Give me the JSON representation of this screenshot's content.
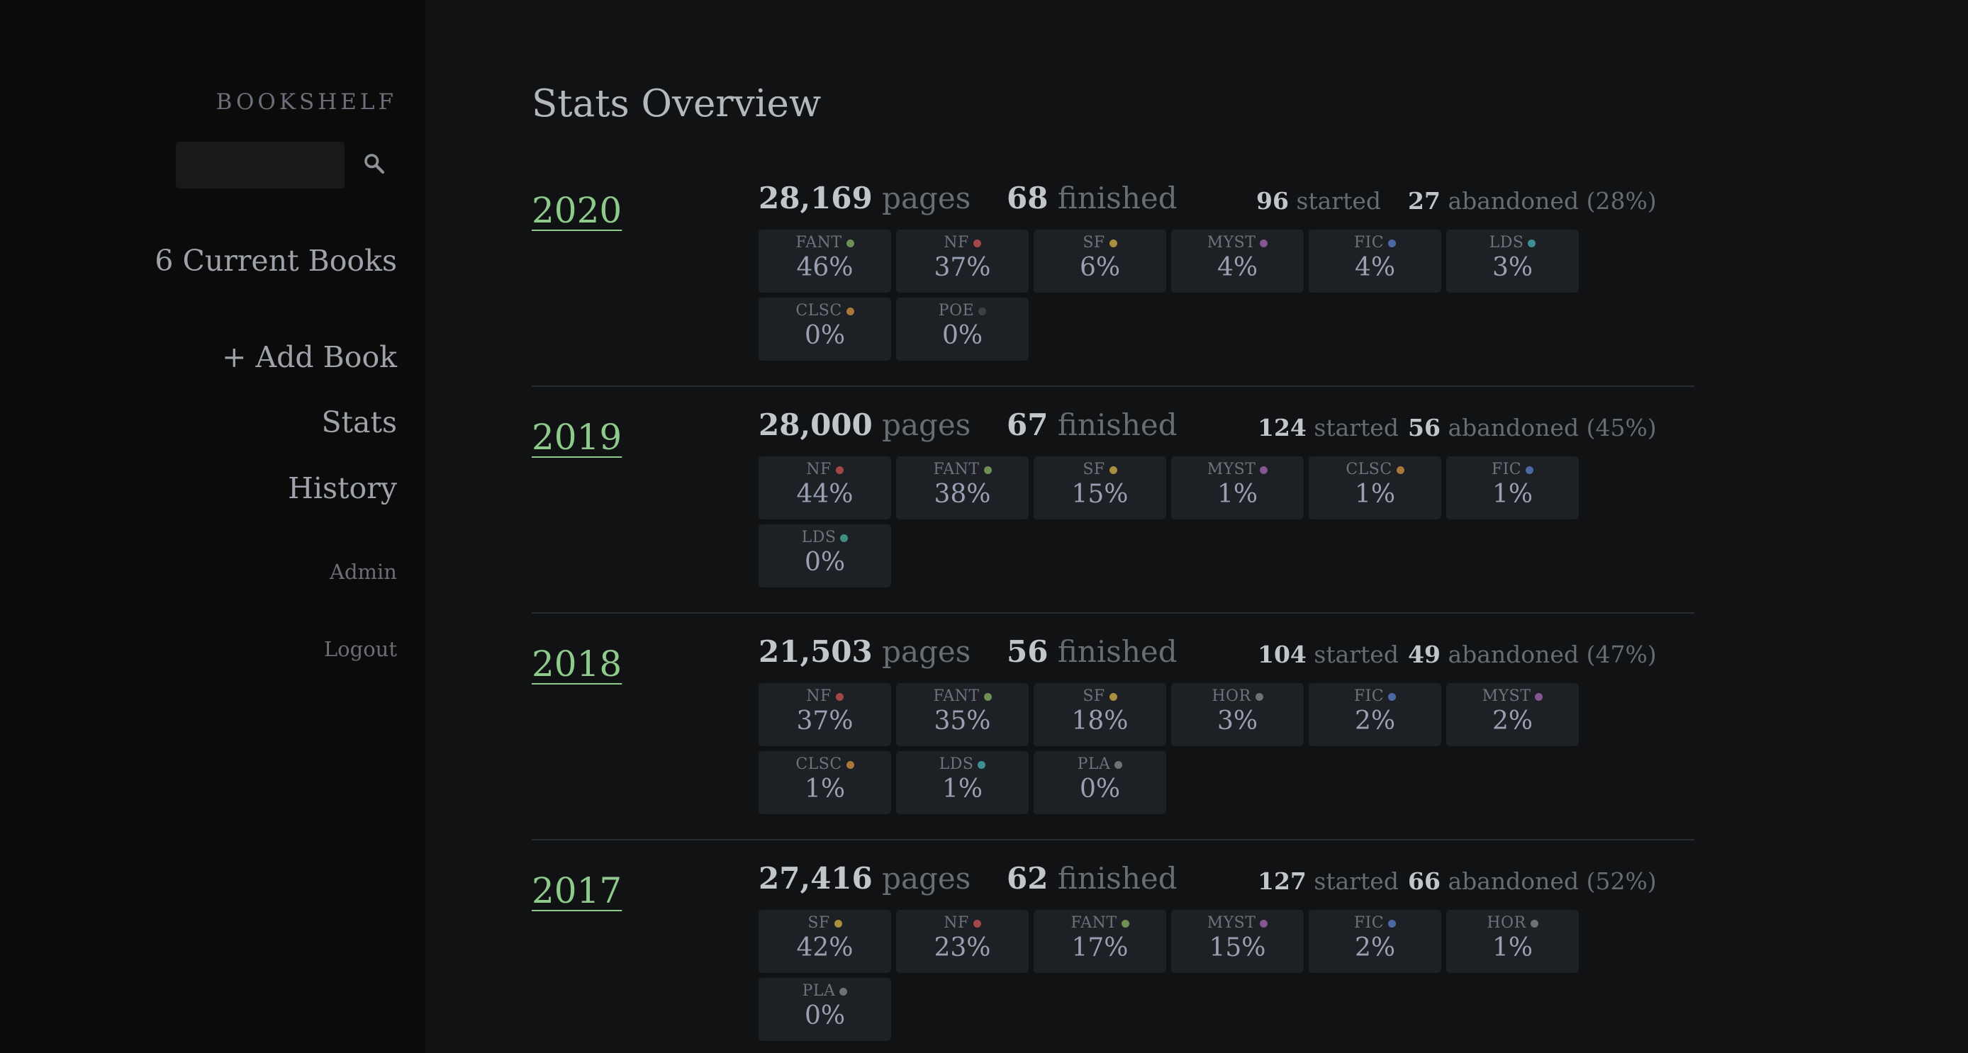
{
  "sidebar": {
    "brand": "BOOKSHELF",
    "search": {
      "value": "",
      "placeholder": ""
    },
    "current_books": "6 Current Books",
    "add_book": "+ Add Book",
    "stats": "Stats",
    "history": "History",
    "admin": "Admin",
    "logout": "Logout"
  },
  "main": {
    "title": "Stats Overview",
    "labels": {
      "pages": "pages",
      "finished": "finished",
      "started": "started",
      "abandoned": "abandoned"
    },
    "years": [
      {
        "year": "2020",
        "pages": "28,169",
        "finished": "68",
        "started": "96",
        "abandoned": "27",
        "abandoned_pct": "(28%)",
        "genres": [
          {
            "code": "FANT",
            "pct": "46%",
            "color": "#6f8f55"
          },
          {
            "code": "NF",
            "pct": "37%",
            "color": "#a24848"
          },
          {
            "code": "SF",
            "pct": "6%",
            "color": "#a8903f"
          },
          {
            "code": "MYST",
            "pct": "4%",
            "color": "#85568f"
          },
          {
            "code": "FIC",
            "pct": "4%",
            "color": "#4c6aa2"
          },
          {
            "code": "LDS",
            "pct": "3%",
            "color": "#3d8f92"
          },
          {
            "code": "CLSC",
            "pct": "0%",
            "color": "#a8773a"
          },
          {
            "code": "POE",
            "pct": "0%",
            "color": "#3d3f44"
          }
        ]
      },
      {
        "year": "2019",
        "pages": "28,000",
        "finished": "67",
        "started": "124",
        "abandoned": "56",
        "abandoned_pct": "(45%)",
        "genres": [
          {
            "code": "NF",
            "pct": "44%",
            "color": "#a24848"
          },
          {
            "code": "FANT",
            "pct": "38%",
            "color": "#6f8f55"
          },
          {
            "code": "SF",
            "pct": "15%",
            "color": "#a8903f"
          },
          {
            "code": "MYST",
            "pct": "1%",
            "color": "#85568f"
          },
          {
            "code": "CLSC",
            "pct": "1%",
            "color": "#a8773a"
          },
          {
            "code": "FIC",
            "pct": "1%",
            "color": "#4c6aa2"
          },
          {
            "code": "LDS",
            "pct": "0%",
            "color": "#3d8f80"
          }
        ]
      },
      {
        "year": "2018",
        "pages": "21,503",
        "finished": "56",
        "started": "104",
        "abandoned": "49",
        "abandoned_pct": "(47%)",
        "genres": [
          {
            "code": "NF",
            "pct": "37%",
            "color": "#a24848"
          },
          {
            "code": "FANT",
            "pct": "35%",
            "color": "#6f8f55"
          },
          {
            "code": "SF",
            "pct": "18%",
            "color": "#a8903f"
          },
          {
            "code": "HOR",
            "pct": "3%",
            "color": "#6e7176"
          },
          {
            "code": "FIC",
            "pct": "2%",
            "color": "#4c6aa2"
          },
          {
            "code": "MYST",
            "pct": "2%",
            "color": "#85568f"
          },
          {
            "code": "CLSC",
            "pct": "1%",
            "color": "#a8773a"
          },
          {
            "code": "LDS",
            "pct": "1%",
            "color": "#3d8f92"
          },
          {
            "code": "PLA",
            "pct": "0%",
            "color": "#6e7176"
          }
        ]
      },
      {
        "year": "2017",
        "pages": "27,416",
        "finished": "62",
        "started": "127",
        "abandoned": "66",
        "abandoned_pct": "(52%)",
        "genres": [
          {
            "code": "SF",
            "pct": "42%",
            "color": "#a8903f"
          },
          {
            "code": "NF",
            "pct": "23%",
            "color": "#a24848"
          },
          {
            "code": "FANT",
            "pct": "17%",
            "color": "#6f8f55"
          },
          {
            "code": "MYST",
            "pct": "15%",
            "color": "#85568f"
          },
          {
            "code": "FIC",
            "pct": "2%",
            "color": "#4c6aa2"
          },
          {
            "code": "HOR",
            "pct": "1%",
            "color": "#6e7176"
          },
          {
            "code": "PLA",
            "pct": "0%",
            "color": "#6e7176"
          }
        ]
      }
    ]
  }
}
